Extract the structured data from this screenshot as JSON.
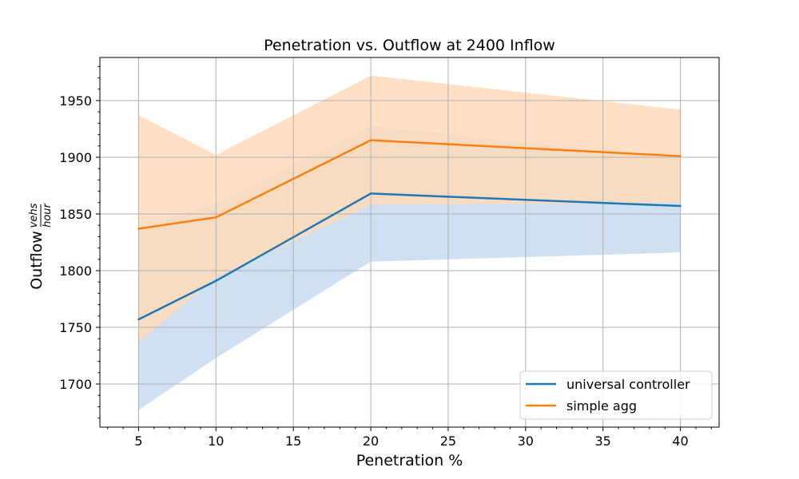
{
  "chart_data": {
    "type": "line",
    "title": "Penetration vs. Outflow at 2400 Inflow",
    "xlabel": "Penetration %",
    "ylabel": {
      "text": "Outflow",
      "unit_numerator": "vehs",
      "unit_denominator": "hour"
    },
    "x": [
      5,
      10,
      20,
      40
    ],
    "xlim": [
      2.5,
      42.5
    ],
    "ylim": [
      1662,
      1988
    ],
    "xticks": [
      5,
      10,
      15,
      20,
      25,
      30,
      35,
      40
    ],
    "yticks": [
      1700,
      1750,
      1800,
      1850,
      1900,
      1950
    ],
    "grid": true,
    "legend_position": "lower-right",
    "series": [
      {
        "name": "universal controller",
        "color": "#1f77b4",
        "band_color": "#c6dbef",
        "values": [
          1757,
          1791,
          1868,
          1857
        ],
        "lower": [
          1677,
          1723,
          1808,
          1816
        ],
        "upper": [
          1837,
          1860,
          1928,
          1898
        ]
      },
      {
        "name": "simple agg",
        "color": "#ff7f0e",
        "band_color": "#ffdbba",
        "values": [
          1837,
          1847,
          1915,
          1901
        ],
        "lower": [
          1737,
          1794,
          1858,
          1860
        ],
        "upper": [
          1937,
          1902,
          1972,
          1942
        ]
      }
    ]
  }
}
